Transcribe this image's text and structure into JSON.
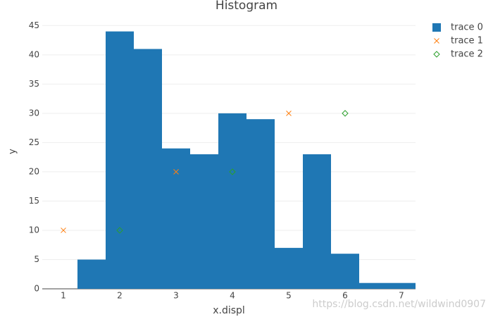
{
  "chart_data": {
    "type": "histogram",
    "title": "Histogram",
    "x_label": "x.displ",
    "y_label": "y",
    "xlim": [
      0.625,
      7.25
    ],
    "xticks": [
      1,
      2,
      3,
      4,
      5,
      6,
      7
    ],
    "ylim": [
      0,
      46
    ],
    "yticks": [
      0,
      5,
      10,
      15,
      20,
      25,
      30,
      35,
      40,
      45
    ],
    "grid": true,
    "legend": "top-right",
    "series": [
      {
        "name": "trace 0",
        "type": "histogram",
        "color": "#1f77b4",
        "bins": [
          1.25,
          1.75,
          2.25,
          2.75,
          3.25,
          3.75,
          4.25,
          4.75,
          5.25,
          5.75,
          6.25,
          6.75,
          7.25
        ],
        "values": [
          5,
          44,
          41,
          24,
          23,
          30,
          29,
          7,
          23,
          6,
          1,
          1
        ]
      },
      {
        "name": "trace 1",
        "type": "scatter",
        "marker": "x",
        "color": "#ff7f0e",
        "x": [
          1,
          3,
          5
        ],
        "values": [
          10,
          20,
          30
        ]
      },
      {
        "name": "trace 2",
        "type": "scatter",
        "marker": "diamond",
        "color": "#2ca02c",
        "x": [
          2,
          4,
          6
        ],
        "values": [
          10,
          20,
          30
        ]
      }
    ],
    "watermark": "https://blog.csdn.net/wildwind0907"
  }
}
